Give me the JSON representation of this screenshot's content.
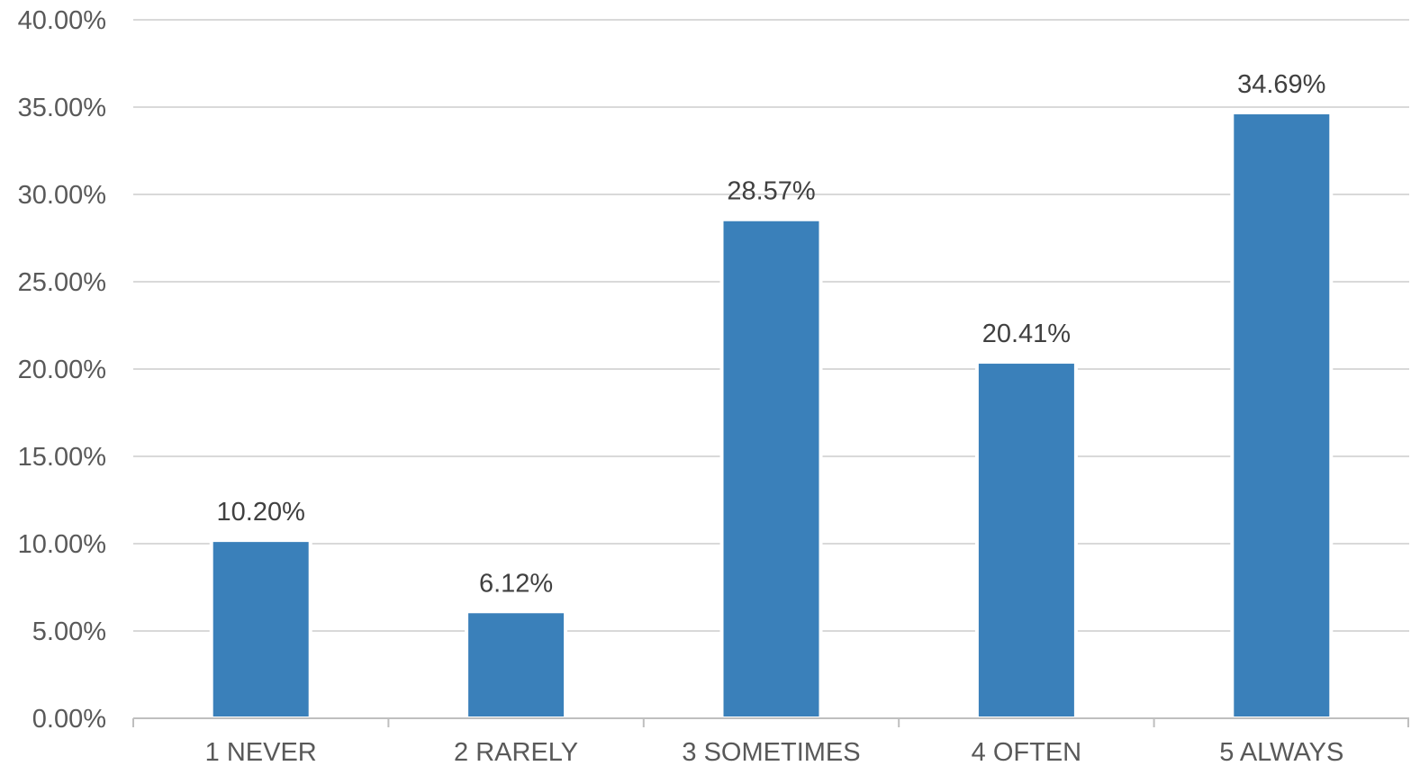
{
  "chart_data": {
    "type": "bar",
    "categories": [
      "1 NEVER",
      "2 RARELY",
      "3 SOMETIMES",
      "4 OFTEN",
      "5 ALWAYS"
    ],
    "values": [
      10.2,
      6.12,
      28.57,
      20.41,
      34.69
    ],
    "data_labels": [
      "10.20%",
      "6.12%",
      "28.57%",
      "20.41%",
      "34.69%"
    ],
    "yticks": [
      0,
      5,
      10,
      15,
      20,
      25,
      30,
      35,
      40
    ],
    "ytick_labels": [
      "0.00%",
      "5.00%",
      "10.00%",
      "15.00%",
      "20.00%",
      "25.00%",
      "30.00%",
      "35.00%",
      "40.00%"
    ],
    "ylim": [
      0,
      40
    ],
    "title": "",
    "xlabel": "",
    "ylabel": "",
    "grid": true,
    "legend": "none",
    "bar_color": "#3a80ba",
    "grid_color": "#d9d9d9",
    "axis_color": "#bfbfbf"
  }
}
